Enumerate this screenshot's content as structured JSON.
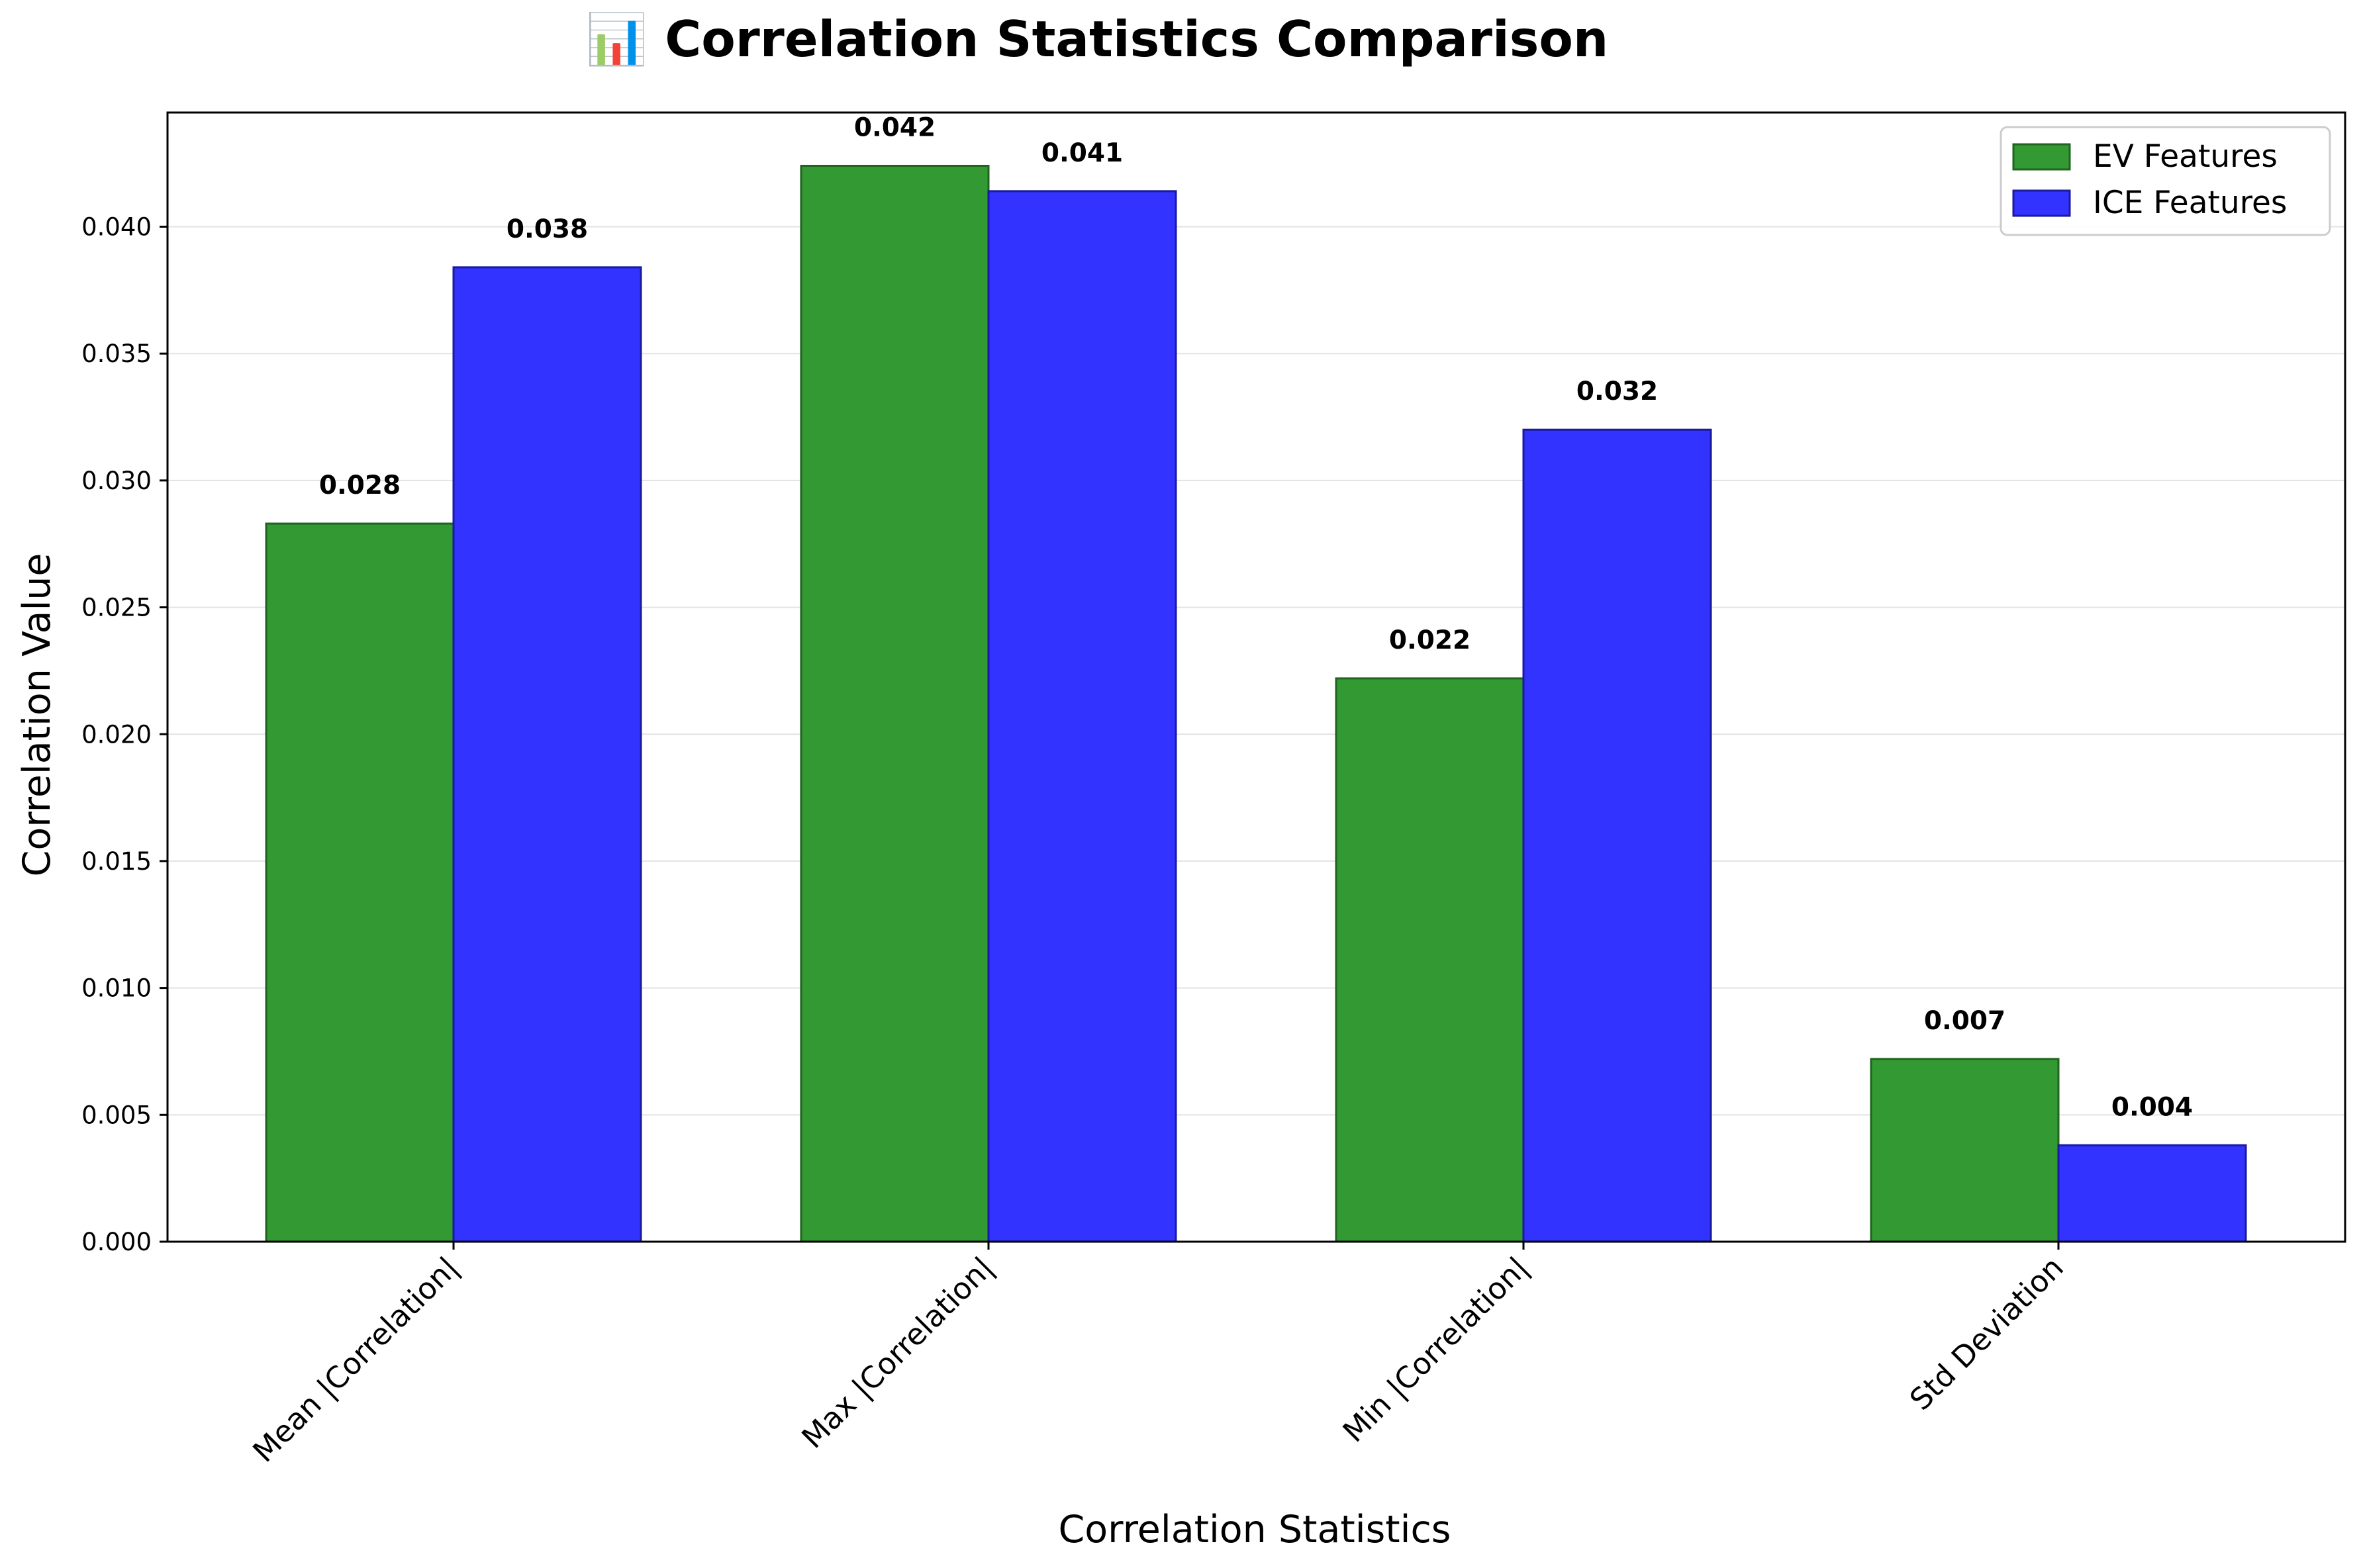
{
  "chart_data": {
    "type": "bar",
    "title": "📊 Correlation Statistics Comparison",
    "xlabel": "Correlation Statistics",
    "ylabel": "Correlation Value",
    "categories": [
      "Mean |Correlation|",
      "Max |Correlation|",
      "Min |Correlation|",
      "Std Deviation"
    ],
    "series": [
      {
        "name": "EV Features",
        "color": "#339933",
        "edge_color": "#1f641f",
        "values": [
          0.0283,
          0.0424,
          0.0222,
          0.0072
        ],
        "labels": [
          "0.028",
          "0.042",
          "0.022",
          "0.007"
        ]
      },
      {
        "name": "ICE Features",
        "color": "#3333ff",
        "edge_color": "#1a1aa0",
        "values": [
          0.0384,
          0.0414,
          0.032,
          0.0038
        ],
        "labels": [
          "0.038",
          "0.041",
          "0.032",
          "0.004"
        ]
      }
    ],
    "ylim": [
      0,
      0.0445
    ],
    "yticks": [
      0.0,
      0.005,
      0.01,
      0.015,
      0.02,
      0.025,
      0.03,
      0.035,
      0.04
    ],
    "ytick_labels": [
      "0.000",
      "0.005",
      "0.010",
      "0.015",
      "0.020",
      "0.025",
      "0.030",
      "0.035",
      "0.040"
    ],
    "grid": true,
    "legend_position": "top-right"
  }
}
